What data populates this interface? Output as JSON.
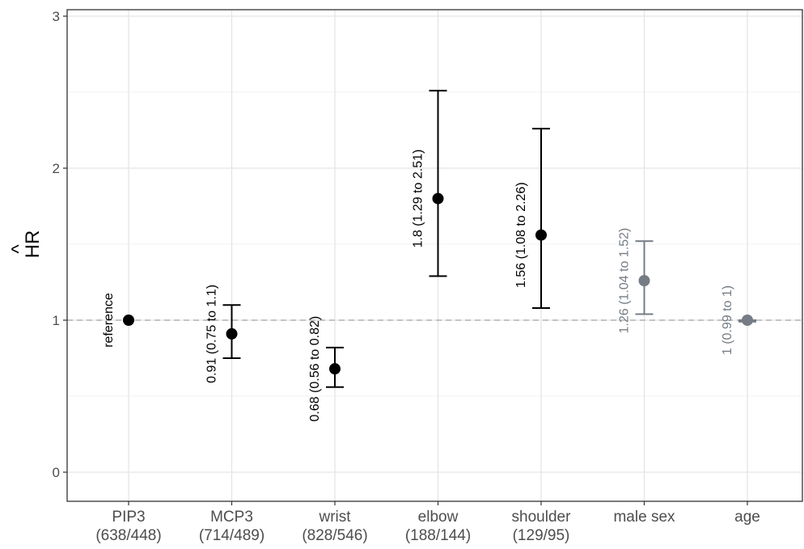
{
  "chart_data": {
    "type": "scatter",
    "ylabel": "HR",
    "ylabel_hat": "^",
    "ylim": [
      -0.15,
      3.05
    ],
    "yticks": [
      0,
      1,
      2,
      3
    ],
    "grid": true,
    "reference_line": 1,
    "categories": [
      {
        "name": "PIP3",
        "sub": "(638/448)"
      },
      {
        "name": "MCP3",
        "sub": "(714/489)"
      },
      {
        "name": "wrist",
        "sub": "(828/546)"
      },
      {
        "name": "elbow",
        "sub": "(188/144)"
      },
      {
        "name": "shoulder",
        "sub": "(129/95)"
      },
      {
        "name": "male sex",
        "sub": ""
      },
      {
        "name": "age",
        "sub": ""
      }
    ],
    "points": [
      {
        "category": "PIP3",
        "hr": 1.0,
        "low": null,
        "high": null,
        "label": "reference",
        "color": "#000000"
      },
      {
        "category": "MCP3",
        "hr": 0.91,
        "low": 0.75,
        "high": 1.1,
        "label": "0.91 (0.75 to 1.1)",
        "color": "#000000"
      },
      {
        "category": "wrist",
        "hr": 0.68,
        "low": 0.56,
        "high": 0.82,
        "label": "0.68 (0.56 to 0.82)",
        "color": "#000000"
      },
      {
        "category": "elbow",
        "hr": 1.8,
        "low": 1.29,
        "high": 2.51,
        "label": "1.8 (1.29 to 2.51)",
        "color": "#000000"
      },
      {
        "category": "shoulder",
        "hr": 1.56,
        "low": 1.08,
        "high": 2.26,
        "label": "1.56 (1.08 to 2.26)",
        "color": "#000000"
      },
      {
        "category": "male sex",
        "hr": 1.26,
        "low": 1.04,
        "high": 1.52,
        "label": "1.26 (1.04 to 1.52)",
        "color": "#757c85"
      },
      {
        "category": "age",
        "hr": 1.0,
        "low": 0.99,
        "high": 1.0,
        "label": "1 (0.99 to 1)",
        "color": "#757c85"
      }
    ]
  }
}
